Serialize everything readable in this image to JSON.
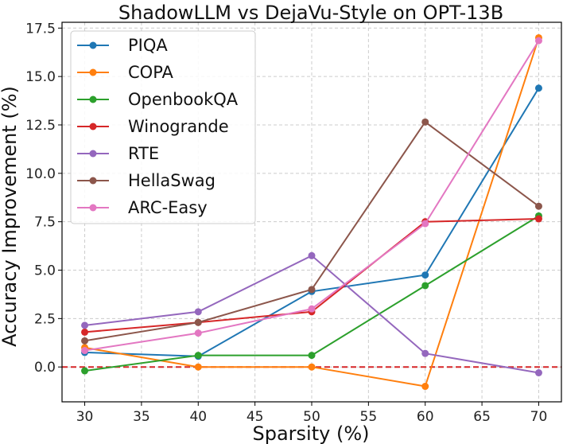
{
  "chart_data": {
    "type": "line",
    "title": "ShadowLLM vs DejaVu-Style on OPT-13B",
    "xlabel": "Sparsity (%)",
    "ylabel": "Accuracy Improvement (%)",
    "x": [
      30,
      40,
      50,
      60,
      70
    ],
    "xlim": [
      28,
      72
    ],
    "ylim": [
      -1.8,
      17.8
    ],
    "xticks": [
      30,
      35,
      40,
      45,
      50,
      55,
      60,
      65,
      70
    ],
    "xtick_labels": [
      "30",
      "35",
      "40",
      "45",
      "50",
      "55",
      "60",
      "65",
      "70"
    ],
    "yticks": [
      0,
      2.5,
      5,
      7.5,
      10,
      12.5,
      15,
      17.5
    ],
    "ytick_labels": [
      "0.0",
      "2.5",
      "5.0",
      "7.5",
      "10.0",
      "12.5",
      "15.0",
      "17.5"
    ],
    "grid": true,
    "legend_position": "top-left",
    "reference_line": {
      "y": 0,
      "color": "#d62728",
      "style": "dashed"
    },
    "series": [
      {
        "name": "PIQA",
        "color": "#1f77b4",
        "values": [
          0.75,
          0.55,
          3.9,
          4.75,
          14.4
        ]
      },
      {
        "name": "COPA",
        "color": "#ff7f0e",
        "values": [
          1.0,
          0.0,
          0.0,
          -1.0,
          17.0
        ]
      },
      {
        "name": "OpenbookQA",
        "color": "#2ca02c",
        "values": [
          -0.2,
          0.6,
          0.6,
          4.2,
          7.8
        ]
      },
      {
        "name": "Winogrande",
        "color": "#d62728",
        "values": [
          1.8,
          2.3,
          2.85,
          7.5,
          7.65
        ]
      },
      {
        "name": "RTE",
        "color": "#9467bd",
        "values": [
          2.15,
          2.85,
          5.75,
          0.7,
          -0.3
        ]
      },
      {
        "name": "HellaSwag",
        "color": "#8c564b",
        "values": [
          1.35,
          2.3,
          4.0,
          12.65,
          8.3
        ]
      },
      {
        "name": "ARC-Easy",
        "color": "#e377c2",
        "values": [
          0.85,
          1.75,
          3.0,
          7.4,
          16.85
        ]
      }
    ]
  }
}
